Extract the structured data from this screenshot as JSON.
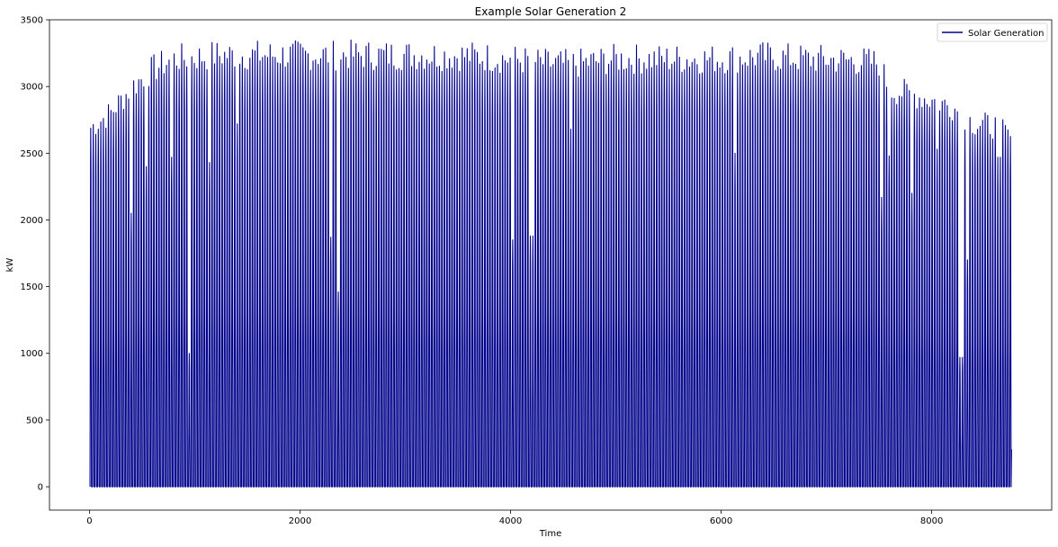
{
  "chart_data": {
    "type": "line",
    "title": "Example Solar Generation 2",
    "xlabel": "Time",
    "ylabel": "kW",
    "xlim": [
      -380,
      9140
    ],
    "ylim": [
      -175,
      3500
    ],
    "xticks": [
      0,
      2000,
      4000,
      6000,
      8000
    ],
    "yticks": [
      0,
      500,
      1000,
      1500,
      2000,
      2500,
      3000,
      3500
    ],
    "grid": false,
    "legend_position": "top-right",
    "series_color": "#00008b",
    "series": [
      {
        "name": "Solar Generation",
        "x_start": 0,
        "x_end": 8759,
        "daily_peak_envelope": [
          [
            0,
            2780
          ],
          [
            200,
            2900
          ],
          [
            400,
            3100
          ],
          [
            600,
            3240
          ],
          [
            800,
            3320
          ],
          [
            1000,
            3330
          ],
          [
            1200,
            3350
          ],
          [
            1600,
            3350
          ],
          [
            2000,
            3350
          ],
          [
            2400,
            3350
          ],
          [
            2800,
            3350
          ],
          [
            3200,
            3350
          ],
          [
            3600,
            3345
          ],
          [
            4000,
            3320
          ],
          [
            4200,
            3300
          ],
          [
            4400,
            3280
          ],
          [
            4600,
            3280
          ],
          [
            4800,
            3300
          ],
          [
            5000,
            3320
          ],
          [
            5200,
            3320
          ],
          [
            5600,
            3320
          ],
          [
            6000,
            3320
          ],
          [
            6400,
            3340
          ],
          [
            6800,
            3320
          ],
          [
            7200,
            3310
          ],
          [
            7500,
            3290
          ],
          [
            7600,
            3080
          ],
          [
            7800,
            3050
          ],
          [
            8000,
            3000
          ],
          [
            8200,
            2950
          ],
          [
            8400,
            2820
          ],
          [
            8600,
            2800
          ],
          [
            8759,
            2700
          ]
        ],
        "low_days": [
          [
            390,
            2050
          ],
          [
            550,
            2400
          ],
          [
            780,
            2470
          ],
          [
            950,
            1000
          ],
          [
            1140,
            2430
          ],
          [
            1410,
            2720
          ],
          [
            2300,
            1870
          ],
          [
            2370,
            1460
          ],
          [
            4030,
            1850
          ],
          [
            4200,
            1880
          ],
          [
            4570,
            2680
          ],
          [
            6130,
            2500
          ],
          [
            7530,
            2170
          ],
          [
            7600,
            2480
          ],
          [
            7820,
            2200
          ],
          [
            8050,
            2530
          ],
          [
            8280,
            970
          ],
          [
            8330,
            1700
          ],
          [
            8640,
            2470
          ]
        ]
      }
    ]
  }
}
